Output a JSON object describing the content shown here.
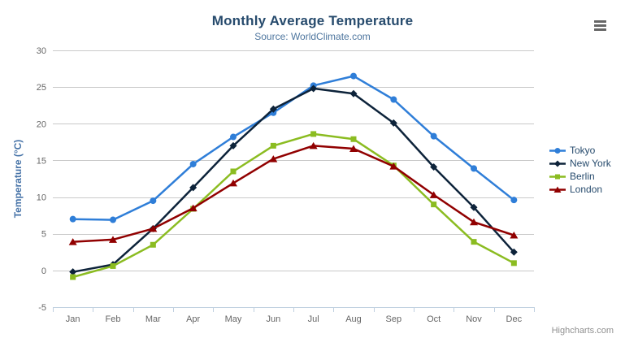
{
  "chart": {
    "title": "Monthly Average Temperature",
    "subtitle": "Source: WorldClimate.com",
    "credit": "Highcharts.com",
    "context_menu_icon": "hamburger-icon"
  },
  "colors": {
    "title": "#274b6d",
    "subtitle": "#4d759e",
    "y_axis_title": "#4572A7",
    "axis_labels": "#666666",
    "gridline": "#C9C9C9",
    "x_axis_line": "#C0D0E0",
    "legend_text": "#274b6d",
    "credit_text": "#909090",
    "menu_icon": "#666666"
  },
  "chart_data": {
    "type": "line",
    "title": "Monthly Average Temperature",
    "subtitle": "Source: WorldClimate.com",
    "xlabel": "",
    "ylabel": "Temperature (°C)",
    "ylim": [
      -5,
      30
    ],
    "yticks": [
      -5,
      0,
      5,
      10,
      15,
      20,
      25,
      30
    ],
    "grid": true,
    "legend_position": "right",
    "categories": [
      "Jan",
      "Feb",
      "Mar",
      "Apr",
      "May",
      "Jun",
      "Jul",
      "Aug",
      "Sep",
      "Oct",
      "Nov",
      "Dec"
    ],
    "series": [
      {
        "name": "Tokyo",
        "color": "#2f7ed8",
        "marker": "circle",
        "values": [
          7.0,
          6.9,
          9.5,
          14.5,
          18.2,
          21.5,
          25.2,
          26.5,
          23.3,
          18.3,
          13.9,
          9.6
        ]
      },
      {
        "name": "New York",
        "color": "#0d233a",
        "marker": "diamond",
        "values": [
          -0.2,
          0.8,
          5.7,
          11.3,
          17.0,
          22.0,
          24.8,
          24.1,
          20.1,
          14.1,
          8.6,
          2.5
        ]
      },
      {
        "name": "Berlin",
        "color": "#8bbc21",
        "marker": "square",
        "values": [
          -0.9,
          0.6,
          3.5,
          8.4,
          13.5,
          17.0,
          18.6,
          17.9,
          14.3,
          9.0,
          3.9,
          1.0
        ]
      },
      {
        "name": "London",
        "color": "#910000",
        "marker": "triangle",
        "values": [
          3.9,
          4.2,
          5.7,
          8.5,
          11.9,
          15.2,
          17.0,
          16.6,
          14.2,
          10.3,
          6.6,
          4.8
        ]
      }
    ]
  }
}
